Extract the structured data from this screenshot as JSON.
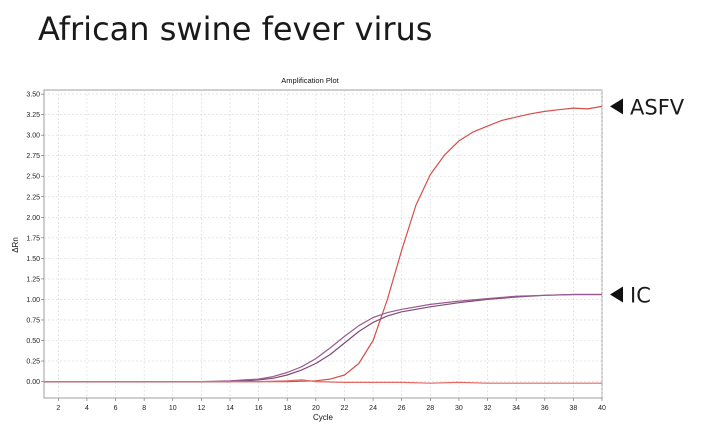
{
  "page": {
    "title": "African swine fever virus"
  },
  "chart_data": {
    "type": "line",
    "title": "Amplification Plot",
    "xlabel": "Cycle",
    "ylabel": "ΔRn",
    "xlim": [
      1,
      40
    ],
    "ylim": [
      -0.2,
      3.55
    ],
    "x_ticks": [
      2,
      4,
      6,
      8,
      10,
      12,
      14,
      16,
      18,
      20,
      22,
      24,
      26,
      28,
      30,
      32,
      34,
      36,
      38,
      40
    ],
    "y_ticks": [
      0.0,
      0.25,
      0.5,
      0.75,
      1.0,
      1.25,
      1.5,
      1.75,
      2.0,
      2.25,
      2.5,
      2.75,
      3.0,
      3.25,
      3.5
    ],
    "y_tick_labels": [
      "0.00",
      "0.25",
      "0.50",
      "0.75",
      "1.00",
      "1.25",
      "1.50",
      "1.75",
      "2.00",
      "2.25",
      "2.50",
      "2.75",
      "3.00",
      "3.25",
      "3.50"
    ],
    "grid": true,
    "series": [
      {
        "name": "ASFV",
        "color": "#d4504a",
        "x": [
          1,
          10,
          14,
          16,
          18,
          20,
          21,
          22,
          23,
          24,
          25,
          26,
          27,
          28,
          29,
          30,
          31,
          32,
          33,
          34,
          35,
          36,
          37,
          38,
          39,
          40
        ],
        "values": [
          0,
          0,
          0.0,
          0.0,
          0.0,
          0.01,
          0.03,
          0.08,
          0.22,
          0.5,
          1.0,
          1.6,
          2.15,
          2.52,
          2.76,
          2.93,
          3.04,
          3.11,
          3.18,
          3.22,
          3.26,
          3.29,
          3.31,
          3.33,
          3.32,
          3.35
        ]
      },
      {
        "name": "IC",
        "color": "#7e4c74",
        "x": [
          1,
          12,
          14,
          16,
          17,
          18,
          19,
          20,
          21,
          22,
          23,
          24,
          25,
          26,
          27,
          28,
          30,
          32,
          34,
          36,
          38,
          40
        ],
        "values": [
          0,
          0,
          0.0,
          0.02,
          0.04,
          0.08,
          0.14,
          0.22,
          0.33,
          0.47,
          0.61,
          0.72,
          0.8,
          0.85,
          0.88,
          0.91,
          0.96,
          1.0,
          1.03,
          1.05,
          1.06,
          1.06
        ]
      },
      {
        "name": "",
        "color": "#9b5a94",
        "x": [
          1,
          12,
          14,
          15,
          16,
          17,
          18,
          19,
          20,
          21,
          22,
          23,
          24,
          25,
          26,
          28,
          30,
          32,
          34,
          36,
          38,
          40
        ],
        "values": [
          0,
          0,
          0.01,
          0.02,
          0.03,
          0.06,
          0.11,
          0.18,
          0.28,
          0.41,
          0.55,
          0.68,
          0.78,
          0.84,
          0.88,
          0.94,
          0.98,
          1.01,
          1.04,
          1.05,
          1.06,
          1.06
        ]
      },
      {
        "name": "",
        "color": "#e06a63",
        "x": [
          1,
          16,
          18,
          19,
          20,
          22,
          24,
          26,
          28,
          30,
          32,
          34,
          36,
          38,
          40
        ],
        "values": [
          0,
          0,
          0.01,
          0.02,
          0.0,
          -0.01,
          -0.01,
          -0.01,
          -0.02,
          -0.01,
          -0.02,
          -0.02,
          -0.02,
          -0.02,
          -0.02
        ]
      }
    ],
    "annotations": [
      {
        "label": "ASFV",
        "y": 3.35
      },
      {
        "label": "IC",
        "y": 1.06
      }
    ]
  }
}
